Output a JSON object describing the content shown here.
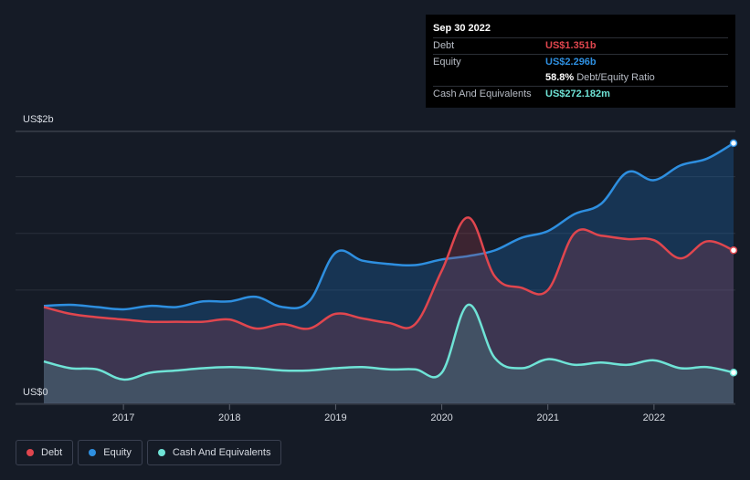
{
  "tooltip": {
    "date": "Sep 30 2022",
    "debt_label": "Debt",
    "debt_value": "US$1.351b",
    "equity_label": "Equity",
    "equity_value": "US$2.296b",
    "ratio_value": "58.8%",
    "ratio_label": "Debt/Equity Ratio",
    "cash_label": "Cash And Equivalents",
    "cash_value": "US$272.182m"
  },
  "colors": {
    "debt": "#e0464e",
    "equity": "#2e8fe0",
    "cash": "#6fe3d6",
    "background": "#151b26"
  },
  "legend": [
    {
      "label": "Debt",
      "color": "#e0464e"
    },
    {
      "label": "Equity",
      "color": "#2e8fe0"
    },
    {
      "label": "Cash And Equivalents",
      "color": "#6fe3d6"
    }
  ],
  "chart_data": {
    "type": "area",
    "title": "",
    "xlabel": "",
    "ylabel": "",
    "y_top_label": "US$2b",
    "y_bottom_label": "US$0",
    "ylim": [
      0,
      2.4
    ],
    "xlim": [
      2016.25,
      2022.75
    ],
    "x_ticks": [
      2017,
      2018,
      2019,
      2020,
      2021,
      2022
    ],
    "x_tick_labels": [
      "2017",
      "2018",
      "2019",
      "2020",
      "2021",
      "2022"
    ],
    "grid": true,
    "legend_position": "bottom-left",
    "series": [
      {
        "name": "Equity",
        "x": [
          2016.25,
          2016.5,
          2016.75,
          2017.0,
          2017.25,
          2017.5,
          2017.75,
          2018.0,
          2018.25,
          2018.5,
          2018.75,
          2019.0,
          2019.25,
          2019.5,
          2019.75,
          2020.0,
          2020.25,
          2020.5,
          2020.75,
          2021.0,
          2021.25,
          2021.5,
          2021.75,
          2022.0,
          2022.25,
          2022.5,
          2022.75
        ],
        "values": [
          0.86,
          0.87,
          0.85,
          0.83,
          0.86,
          0.85,
          0.9,
          0.9,
          0.94,
          0.85,
          0.9,
          1.33,
          1.26,
          1.23,
          1.22,
          1.27,
          1.3,
          1.35,
          1.46,
          1.52,
          1.67,
          1.76,
          2.04,
          1.97,
          2.1,
          2.16,
          2.296
        ]
      },
      {
        "name": "Debt",
        "x": [
          2016.25,
          2016.5,
          2016.75,
          2017.0,
          2017.25,
          2017.5,
          2017.75,
          2018.0,
          2018.25,
          2018.5,
          2018.75,
          2019.0,
          2019.25,
          2019.5,
          2019.75,
          2020.0,
          2020.25,
          2020.5,
          2020.75,
          2021.0,
          2021.25,
          2021.5,
          2021.75,
          2022.0,
          2022.25,
          2022.5,
          2022.75
        ],
        "values": [
          0.85,
          0.79,
          0.76,
          0.74,
          0.72,
          0.72,
          0.72,
          0.74,
          0.66,
          0.7,
          0.66,
          0.79,
          0.75,
          0.71,
          0.7,
          1.17,
          1.64,
          1.12,
          1.02,
          1.0,
          1.5,
          1.48,
          1.45,
          1.44,
          1.28,
          1.43,
          1.351
        ]
      },
      {
        "name": "Cash And Equivalents",
        "x": [
          2016.25,
          2016.5,
          2016.75,
          2017.0,
          2017.25,
          2017.5,
          2017.75,
          2018.0,
          2018.25,
          2018.5,
          2018.75,
          2019.0,
          2019.25,
          2019.5,
          2019.75,
          2020.0,
          2020.25,
          2020.5,
          2020.75,
          2021.0,
          2021.25,
          2021.5,
          2021.75,
          2022.0,
          2022.25,
          2022.5,
          2022.75
        ],
        "values": [
          0.37,
          0.31,
          0.3,
          0.21,
          0.27,
          0.29,
          0.31,
          0.32,
          0.31,
          0.29,
          0.29,
          0.31,
          0.32,
          0.3,
          0.3,
          0.27,
          0.87,
          0.4,
          0.31,
          0.39,
          0.34,
          0.36,
          0.34,
          0.38,
          0.31,
          0.32,
          0.272
        ]
      }
    ]
  }
}
